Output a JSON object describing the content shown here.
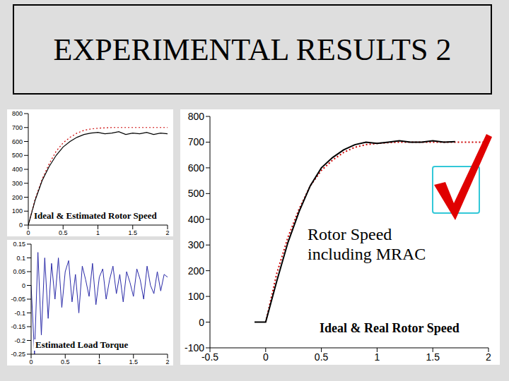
{
  "title": "EXPERIMENTAL RESULTS 2",
  "chart_data": [
    {
      "type": "line",
      "title": "Ideal & Estimated Rotor Speed",
      "x": [
        0,
        0.1,
        0.2,
        0.3,
        0.4,
        0.5,
        0.6,
        0.7,
        0.8,
        0.9,
        1.0,
        1.1,
        1.2,
        1.3,
        1.4,
        1.5,
        1.6,
        1.7,
        1.8,
        1.9,
        2.0
      ],
      "series": [
        {
          "color": "#cc0000",
          "line_style": "dotted",
          "values": [
            0,
            190,
            330,
            440,
            530,
            590,
            630,
            660,
            680,
            690,
            695,
            698,
            700,
            700,
            700,
            700,
            700,
            700,
            700,
            700,
            700
          ]
        },
        {
          "color": "#000000",
          "line_style": "solid",
          "values": [
            0,
            180,
            320,
            420,
            500,
            560,
            600,
            630,
            650,
            660,
            665,
            655,
            660,
            670,
            650,
            660,
            655,
            665,
            650,
            660,
            655
          ]
        }
      ],
      "xlim": [
        0,
        2
      ],
      "xticks": [
        0,
        0.5,
        1,
        1.5,
        2
      ],
      "ylim": [
        0,
        800
      ],
      "yticks": [
        0,
        100,
        200,
        300,
        400,
        500,
        600,
        700,
        800
      ],
      "grid": false
    },
    {
      "type": "line",
      "title": "Estimated Load Torque",
      "x": [
        0,
        0.05,
        0.1,
        0.15,
        0.2,
        0.25,
        0.3,
        0.35,
        0.4,
        0.45,
        0.5,
        0.55,
        0.6,
        0.65,
        0.7,
        0.75,
        0.8,
        0.85,
        0.9,
        0.95,
        1.0,
        1.05,
        1.1,
        1.15,
        1.2,
        1.25,
        1.3,
        1.35,
        1.4,
        1.45,
        1.5,
        1.55,
        1.6,
        1.65,
        1.7,
        1.75,
        1.8,
        1.85,
        1.9,
        1.95,
        2.0
      ],
      "series": [
        {
          "color": "#2a2aa8",
          "line_style": "solid",
          "values": [
            0,
            -0.25,
            0.12,
            -0.18,
            0.1,
            -0.12,
            0.08,
            -0.05,
            0.1,
            -0.08,
            0.05,
            0.09,
            -0.06,
            0.04,
            -0.1,
            0.07,
            0.02,
            -0.04,
            0.08,
            -0.07,
            0.03,
            0.06,
            -0.05,
            0.02,
            0.07,
            -0.03,
            0.04,
            -0.06,
            0.05,
            0.01,
            -0.04,
            0.06,
            0.02,
            -0.05,
            0.07,
            0,
            -0.03,
            0.05,
            -0.02,
            0.04,
            0.03
          ]
        }
      ],
      "xlim": [
        0,
        2
      ],
      "xticks": [
        0,
        0.5,
        1,
        1.5,
        2
      ],
      "ylim": [
        -0.25,
        0.15
      ],
      "yticks": [
        -0.25,
        -0.2,
        -0.15,
        -0.1,
        -0.05,
        0,
        0.05,
        0.1,
        0.15
      ],
      "grid": false
    },
    {
      "type": "line",
      "title": "Ideal & Real Rotor Speed",
      "annotation": "Rotor Speed including MRAC",
      "x": [
        -0.1,
        0,
        0.1,
        0.2,
        0.3,
        0.4,
        0.5,
        0.6,
        0.7,
        0.8,
        0.9,
        1.0,
        1.1,
        1.2,
        1.3,
        1.4,
        1.5,
        1.6,
        1.7,
        1.8,
        1.9,
        2.0
      ],
      "series": [
        {
          "color": "#cc0000",
          "line_style": "dotted",
          "values": [
            null,
            0,
            190,
            330,
            440,
            530,
            590,
            630,
            660,
            680,
            690,
            695,
            698,
            700,
            700,
            700,
            700,
            700,
            700,
            700,
            700,
            700
          ]
        },
        {
          "color": "#000000",
          "line_style": "solid",
          "values": [
            0,
            0,
            160,
            310,
            430,
            530,
            600,
            640,
            670,
            690,
            700,
            695,
            700,
            705,
            700,
            700,
            705,
            700,
            702,
            null,
            null,
            null
          ]
        }
      ],
      "xlim": [
        -0.5,
        2
      ],
      "xticks": [
        -0.5,
        0,
        0.5,
        1,
        1.5,
        2
      ],
      "ylim": [
        -100,
        800
      ],
      "yticks": [
        -100,
        0,
        100,
        200,
        300,
        400,
        500,
        600,
        700,
        800
      ],
      "grid": false
    }
  ]
}
